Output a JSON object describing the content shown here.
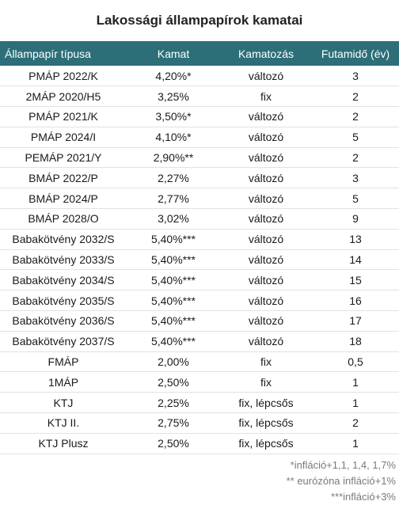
{
  "title": "Lakossági állampapírok kamatai",
  "columns": [
    "Állampapír típusa",
    "Kamat",
    "Kamatozás",
    "Futamidő (év)"
  ],
  "rows": [
    {
      "type": "PMÁP 2022/K",
      "rate": "4,20%*",
      "interest": "változó",
      "term": "3"
    },
    {
      "type": "2MÁP 2020/H5",
      "rate": "3,25%",
      "interest": "fix",
      "term": "2"
    },
    {
      "type": "PMÁP 2021/K",
      "rate": "3,50%*",
      "interest": "változó",
      "term": "2"
    },
    {
      "type": "PMÁP 2024/I",
      "rate": "4,10%*",
      "interest": "változó",
      "term": "5"
    },
    {
      "type": "PEMÁP 2021/Y",
      "rate": "2,90%**",
      "interest": "változó",
      "term": "2"
    },
    {
      "type": "BMÁP 2022/P",
      "rate": "2,27%",
      "interest": "változó",
      "term": "3"
    },
    {
      "type": "BMÁP 2024/P",
      "rate": "2,77%",
      "interest": "változó",
      "term": "5"
    },
    {
      "type": "BMÁP 2028/O",
      "rate": "3,02%",
      "interest": "változó",
      "term": "9"
    },
    {
      "type": "Babakötvény 2032/S",
      "rate": "5,40%***",
      "interest": "változó",
      "term": "13"
    },
    {
      "type": "Babakötvény 2033/S",
      "rate": "5,40%***",
      "interest": "változó",
      "term": "14"
    },
    {
      "type": "Babakötvény 2034/S",
      "rate": "5,40%***",
      "interest": "változó",
      "term": "15"
    },
    {
      "type": "Babakötvény 2035/S",
      "rate": "5,40%***",
      "interest": "változó",
      "term": "16"
    },
    {
      "type": "Babakötvény 2036/S",
      "rate": "5,40%***",
      "interest": "változó",
      "term": "17"
    },
    {
      "type": "Babakötvény 2037/S",
      "rate": "5,40%***",
      "interest": "változó",
      "term": "18"
    },
    {
      "type": "FMÁP",
      "rate": "2,00%",
      "interest": "fix",
      "term": "0,5"
    },
    {
      "type": "1MÁP",
      "rate": "2,50%",
      "interest": "fix",
      "term": "1"
    },
    {
      "type": "KTJ",
      "rate": "2,25%",
      "interest": "fix, lépcsős",
      "term": "1"
    },
    {
      "type": "KTJ II.",
      "rate": "2,75%",
      "interest": "fix, lépcsős",
      "term": "2"
    },
    {
      "type": "KTJ Plusz",
      "rate": "2,50%",
      "interest": "fix, lépcsős",
      "term": "1"
    }
  ],
  "notes": [
    "*infláció+1,1, 1,4, 1,7%",
    "** eurózóna infláció+1%",
    "***infláció+3%"
  ],
  "colors": {
    "header_bg": "#2c6f78",
    "header_text": "#ffffff"
  }
}
